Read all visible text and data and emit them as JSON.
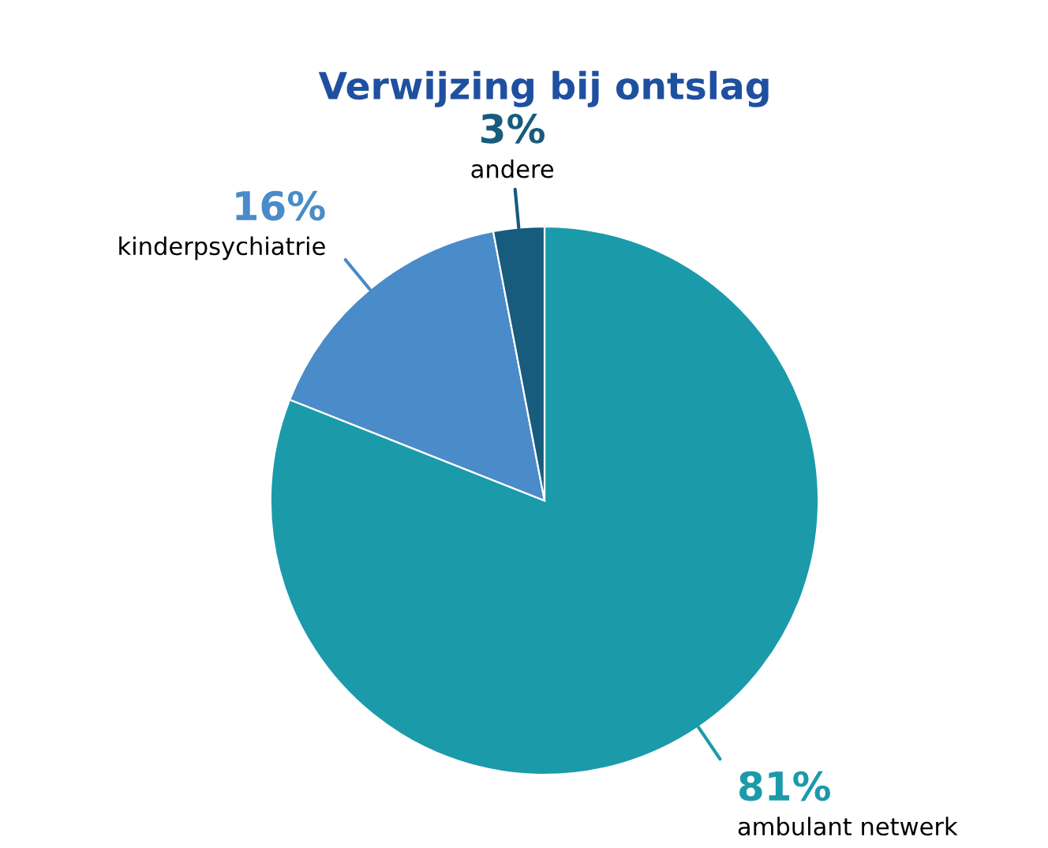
{
  "chart_data": {
    "type": "pie",
    "title": "Verwijzing bij ontslag",
    "categories": [
      "ambulant netwerk",
      "kinderpsychiatrie",
      "andere"
    ],
    "values": [
      81,
      16,
      3
    ],
    "colors": [
      "#1b9aaa",
      "#4a8bc9",
      "#175b7d"
    ],
    "value_labels": [
      "81%",
      "16%",
      "3%"
    ]
  }
}
